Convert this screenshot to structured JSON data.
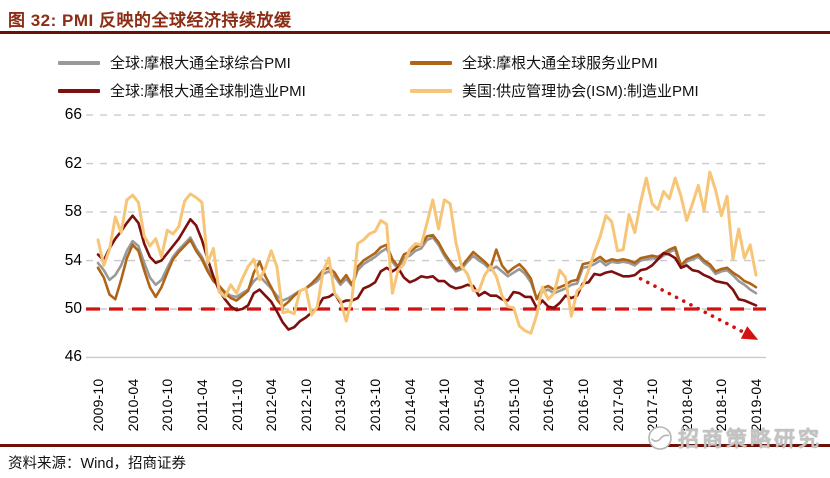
{
  "header": {
    "title": "图 32: PMI 反映的全球经济持续放缓"
  },
  "footer": {
    "source": "资料来源：Wind，招商证券",
    "watermark": "招商策略研究"
  },
  "colors": {
    "title": "#8C2D15",
    "rule": "#6E1007",
    "grid": "#CBCBCB",
    "reference_red": "#D31111",
    "watermark_gray": "#C3C3C3",
    "background": "#FFFFFF"
  },
  "chart_data": {
    "type": "line",
    "x_start": "2009-10",
    "x_end": "2019-04",
    "x_frequency": "monthly",
    "x_tick_labels": [
      "2009-10",
      "2010-04",
      "2010-10",
      "2011-04",
      "2011-10",
      "2012-04",
      "2012-10",
      "2013-04",
      "2013-10",
      "2014-04",
      "2014-10",
      "2015-04",
      "2015-10",
      "2016-04",
      "2016-10",
      "2017-04",
      "2017-10",
      "2018-04",
      "2018-10",
      "2019-04"
    ],
    "yticks": [
      66,
      62,
      58,
      54,
      50,
      46
    ],
    "ylim": [
      46,
      66
    ],
    "grid": "dashed-horizontal",
    "legend_position": "top",
    "reference_line": {
      "value": 50,
      "color": "#D31111",
      "style": "dashed"
    },
    "annotation_arrow": {
      "from": {
        "x": "2017-08",
        "value": 52.5
      },
      "to": {
        "x": "2019-03",
        "value": 47.8
      },
      "color": "#D31111",
      "style": "dotted"
    },
    "series": [
      {
        "name": "全球:摩根大通全球综合PMI",
        "color": "#999999",
        "values": [
          53.8,
          53.2,
          52.4,
          52.8,
          53.6,
          54.8,
          55.6,
          55.2,
          53.8,
          52.6,
          52.0,
          52.4,
          53.4,
          54.3,
          54.9,
          55.4,
          55.9,
          55.0,
          54.3,
          53.3,
          52.5,
          51.9,
          51.4,
          51.1,
          51.0,
          51.3,
          51.6,
          52.3,
          52.7,
          52.2,
          51.7,
          51.1,
          50.7,
          50.9,
          51.2,
          51.5,
          51.7,
          52.0,
          52.3,
          52.9,
          53.1,
          52.7,
          52.0,
          52.5,
          51.9,
          53.2,
          53.7,
          54.0,
          54.3,
          54.7,
          55.0,
          53.9,
          53.3,
          54.2,
          54.4,
          54.8,
          55.0,
          55.7,
          55.9,
          55.3,
          54.4,
          53.7,
          53.1,
          53.3,
          53.9,
          54.4,
          54.0,
          53.7,
          53.2,
          53.5,
          53.1,
          52.7,
          53.0,
          53.3,
          52.9,
          52.2,
          50.9,
          51.4,
          51.6,
          51.3,
          51.5,
          51.7,
          52.0,
          52.1,
          53.4,
          53.5,
          53.7,
          54.0,
          53.6,
          53.9,
          53.8,
          53.9,
          53.8,
          53.6,
          54.0,
          54.1,
          54.2,
          54.1,
          54.4,
          54.7,
          54.9,
          53.4,
          53.9,
          54.1,
          54.3,
          53.8,
          53.5,
          52.9,
          53.1,
          53.2,
          52.8,
          52.3,
          52.0,
          51.6,
          51.3
        ]
      },
      {
        "name": "全球:摩根大通全球服务业PMI",
        "color": "#AF6518",
        "values": [
          53.4,
          52.6,
          51.2,
          50.8,
          52.4,
          54.2,
          55.3,
          54.8,
          53.2,
          51.8,
          51.0,
          51.8,
          53.0,
          54.1,
          54.7,
          55.2,
          55.7,
          54.8,
          54.1,
          53.1,
          52.3,
          51.9,
          51.3,
          50.9,
          50.7,
          51.1,
          51.5,
          53.0,
          53.9,
          52.7,
          51.8,
          50.8,
          50.2,
          50.6,
          51.1,
          51.5,
          51.7,
          52.1,
          52.6,
          53.2,
          53.4,
          53.0,
          52.2,
          52.8,
          52.0,
          53.5,
          54.0,
          54.3,
          54.6,
          55.1,
          55.3,
          54.1,
          53.5,
          54.5,
          54.7,
          55.1,
          55.3,
          56.0,
          56.1,
          55.5,
          54.6,
          53.9,
          53.3,
          53.5,
          54.1,
          54.7,
          54.3,
          53.9,
          53.4,
          54.9,
          53.6,
          53.0,
          53.4,
          53.7,
          53.2,
          52.5,
          50.8,
          51.7,
          51.9,
          51.6,
          51.8,
          52.0,
          52.3,
          52.4,
          53.7,
          53.8,
          54.0,
          54.3,
          53.9,
          54.1,
          54.0,
          54.1,
          54.0,
          53.8,
          54.2,
          54.3,
          54.4,
          54.3,
          54.6,
          54.9,
          55.1,
          53.6,
          54.1,
          54.3,
          54.5,
          54.0,
          53.7,
          53.1,
          53.3,
          53.4,
          53.0,
          52.7,
          52.3,
          52.1,
          51.8
        ]
      },
      {
        "name": "全球:摩根大通全球制造业PMI",
        "color": "#7D100E",
        "values": [
          54.5,
          54.0,
          55.0,
          55.8,
          56.4,
          57.1,
          57.7,
          57.1,
          55.4,
          54.3,
          53.8,
          54.0,
          54.6,
          55.2,
          55.8,
          56.6,
          57.4,
          56.9,
          55.7,
          54.1,
          52.7,
          51.5,
          50.8,
          50.2,
          49.9,
          50.0,
          50.3,
          51.3,
          51.6,
          51.1,
          50.6,
          49.8,
          48.9,
          48.3,
          48.5,
          49.0,
          49.3,
          49.7,
          50.1,
          50.9,
          51.0,
          51.3,
          50.5,
          50.7,
          50.7,
          50.9,
          51.7,
          51.9,
          52.2,
          53.1,
          53.4,
          53.1,
          53.4,
          52.6,
          52.2,
          52.4,
          52.7,
          52.6,
          52.7,
          52.3,
          52.3,
          51.9,
          51.7,
          51.8,
          52.0,
          51.9,
          51.1,
          51.4,
          51.1,
          51.1,
          50.8,
          50.7,
          51.4,
          51.3,
          51.0,
          51.0,
          50.1,
          50.7,
          50.2,
          50.1,
          50.5,
          51.1,
          50.9,
          51.1,
          52.1,
          52.2,
          52.9,
          52.8,
          53.0,
          53.1,
          52.9,
          52.7,
          52.7,
          52.8,
          53.2,
          53.3,
          53.6,
          54.1,
          54.6,
          54.5,
          54.2,
          53.4,
          53.6,
          53.2,
          53.1,
          52.8,
          52.6,
          52.3,
          52.2,
          52.1,
          51.6,
          50.8,
          50.7,
          50.5,
          50.3
        ]
      },
      {
        "name": "美国:供应管理协会(ISM):制造业PMI",
        "color": "#F7C577",
        "values": [
          55.7,
          53.6,
          54.9,
          57.6,
          56.3,
          59.0,
          59.4,
          58.8,
          56.0,
          55.2,
          55.8,
          54.3,
          56.5,
          56.2,
          56.8,
          58.9,
          59.5,
          59.2,
          58.8,
          53.8,
          55.0,
          51.4,
          51.0,
          52.0,
          51.3,
          52.5,
          53.5,
          54.1,
          52.4,
          53.4,
          54.8,
          53.5,
          49.7,
          49.8,
          49.6,
          51.5,
          51.7,
          49.5,
          50.2,
          53.1,
          54.2,
          51.3,
          50.7,
          49.0,
          50.9,
          55.4,
          55.7,
          56.2,
          56.4,
          57.3,
          57.0,
          51.3,
          53.2,
          53.7,
          54.9,
          55.4,
          55.3,
          57.1,
          59.0,
          56.6,
          59.0,
          58.7,
          55.5,
          53.5,
          52.9,
          51.5,
          51.5,
          52.8,
          53.5,
          52.7,
          51.1,
          50.2,
          50.1,
          48.6,
          48.2,
          48.0,
          49.5,
          51.8,
          50.8,
          51.3,
          53.2,
          52.6,
          49.4,
          51.5,
          51.9,
          53.2,
          54.7,
          56.0,
          57.7,
          57.2,
          54.8,
          54.9,
          57.8,
          56.3,
          58.8,
          60.8,
          58.7,
          58.2,
          59.7,
          59.1,
          60.8,
          59.3,
          57.3,
          58.7,
          60.2,
          58.1,
          61.3,
          59.8,
          57.7,
          59.3,
          54.1,
          56.6,
          54.2,
          55.3,
          52.8
        ]
      }
    ]
  }
}
